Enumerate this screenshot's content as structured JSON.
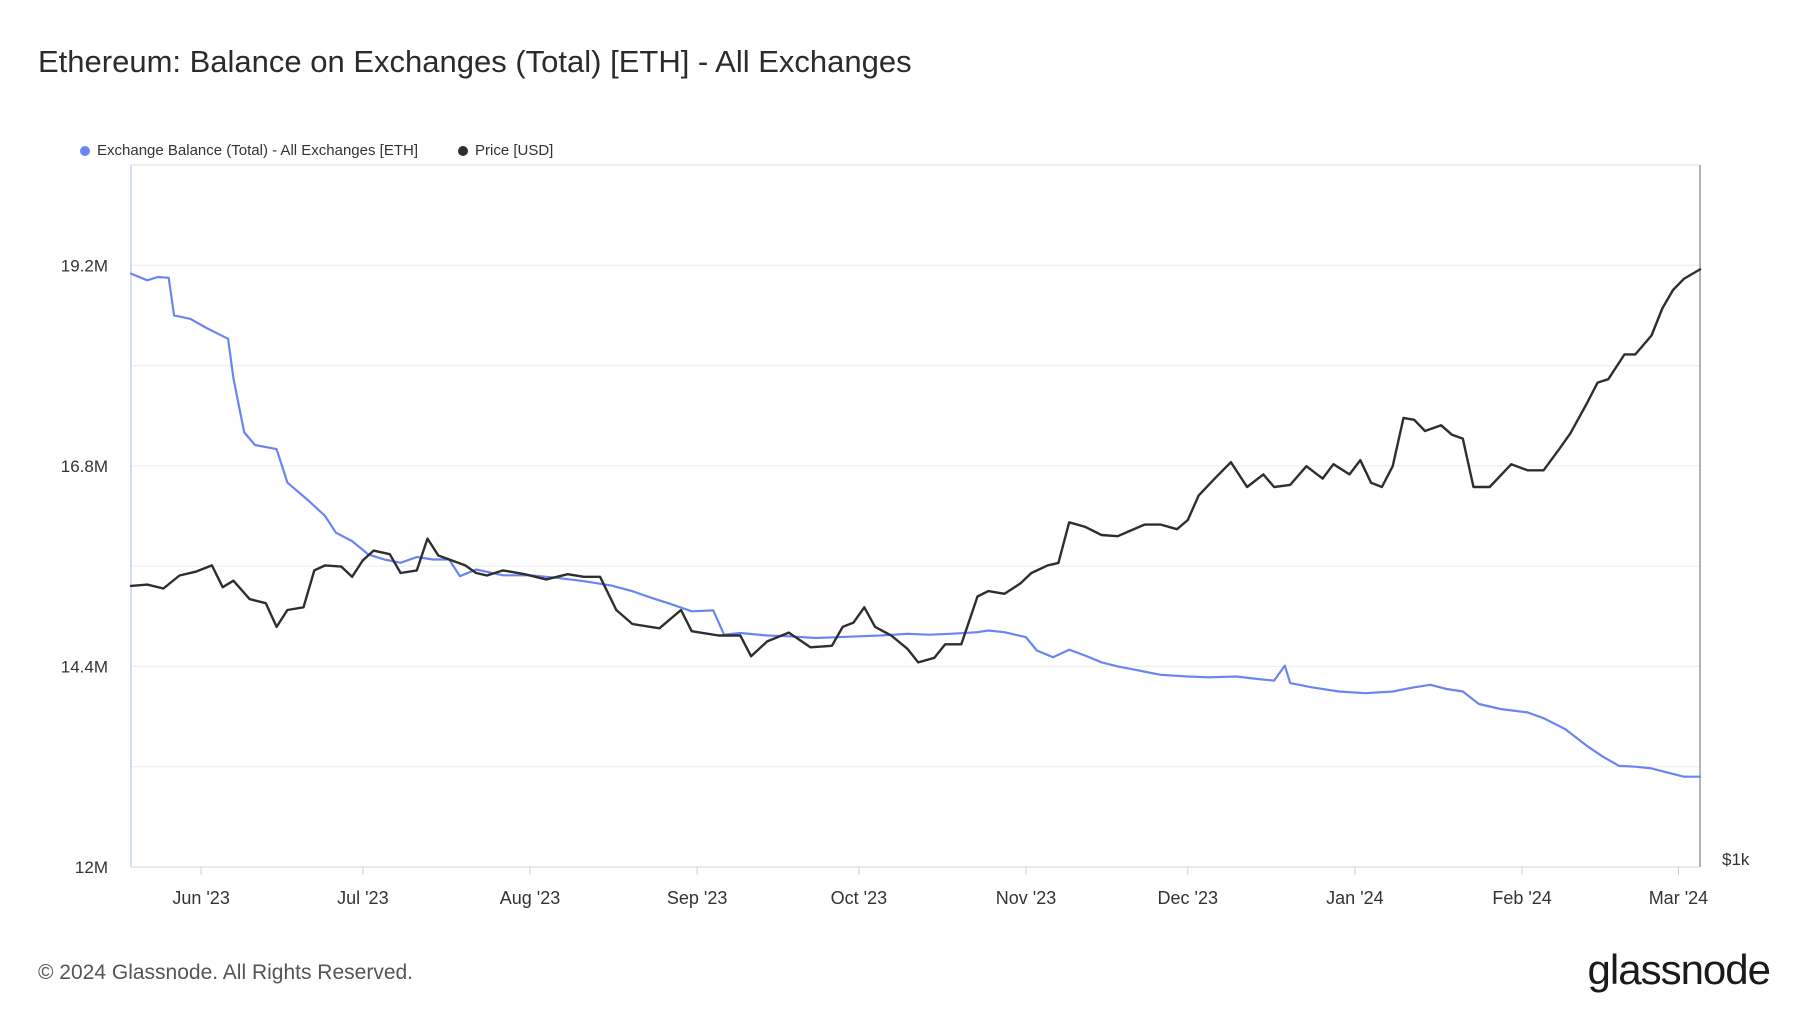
{
  "title": "Ethereum: Balance on Exchanges (Total) [ETH] - All Exchanges",
  "legend": [
    {
      "label": "Exchange Balance (Total) - All Exchanges [ETH]",
      "color": "#6a85f0"
    },
    {
      "label": "Price [USD]",
      "color": "#2e2e2e"
    }
  ],
  "footer": "© 2024 Glassnode. All Rights Reserved.",
  "logo": "glassnode",
  "chart_data": {
    "type": "line",
    "x_ticks": [
      "Jun '23",
      "Jul '23",
      "Aug '23",
      "Sep '23",
      "Oct '23",
      "Nov '23",
      "Dec '23",
      "Jan '24",
      "Feb '24",
      "Mar '24"
    ],
    "y_left_ticks": [
      "19.2M",
      "16.8M",
      "14.4M",
      "12M"
    ],
    "y_left_range": [
      12000000,
      20400000
    ],
    "y_right_ticks": [
      "$1k"
    ],
    "x_range": [
      "2023-05-19",
      "2024-03-05"
    ],
    "grid": true,
    "legend_position": "top-left",
    "series": [
      {
        "name": "Exchange Balance (Total) - All Exchanges [ETH]",
        "axis": "left",
        "color": "#6a85f0",
        "points": [
          [
            "2023-05-19",
            19100000
          ],
          [
            "2023-05-22",
            19020000
          ],
          [
            "2023-05-24",
            19060000
          ],
          [
            "2023-05-26",
            19050000
          ],
          [
            "2023-05-27",
            18600000
          ],
          [
            "2023-05-30",
            18560000
          ],
          [
            "2023-06-02",
            18450000
          ],
          [
            "2023-06-06",
            18320000
          ],
          [
            "2023-06-07",
            17850000
          ],
          [
            "2023-06-09",
            17200000
          ],
          [
            "2023-06-11",
            17050000
          ],
          [
            "2023-06-15",
            17000000
          ],
          [
            "2023-06-17",
            16600000
          ],
          [
            "2023-06-21",
            16380000
          ],
          [
            "2023-06-24",
            16200000
          ],
          [
            "2023-06-26",
            16000000
          ],
          [
            "2023-06-29",
            15900000
          ],
          [
            "2023-07-02",
            15740000
          ],
          [
            "2023-07-05",
            15680000
          ],
          [
            "2023-07-08",
            15640000
          ],
          [
            "2023-07-11",
            15710000
          ],
          [
            "2023-07-14",
            15680000
          ],
          [
            "2023-07-17",
            15680000
          ],
          [
            "2023-07-19",
            15480000
          ],
          [
            "2023-07-22",
            15560000
          ],
          [
            "2023-07-27",
            15490000
          ],
          [
            "2023-08-01",
            15490000
          ],
          [
            "2023-08-06",
            15460000
          ],
          [
            "2023-08-11",
            15420000
          ],
          [
            "2023-08-16",
            15370000
          ],
          [
            "2023-08-20",
            15300000
          ],
          [
            "2023-08-24",
            15210000
          ],
          [
            "2023-08-27",
            15150000
          ],
          [
            "2023-08-31",
            15060000
          ],
          [
            "2023-09-04",
            15070000
          ],
          [
            "2023-09-06",
            14780000
          ],
          [
            "2023-09-09",
            14800000
          ],
          [
            "2023-09-14",
            14770000
          ],
          [
            "2023-09-18",
            14760000
          ],
          [
            "2023-09-23",
            14740000
          ],
          [
            "2023-09-27",
            14750000
          ],
          [
            "2023-10-01",
            14760000
          ],
          [
            "2023-10-05",
            14770000
          ],
          [
            "2023-10-10",
            14790000
          ],
          [
            "2023-10-14",
            14780000
          ],
          [
            "2023-10-18",
            14790000
          ],
          [
            "2023-10-23",
            14810000
          ],
          [
            "2023-10-25",
            14830000
          ],
          [
            "2023-10-28",
            14810000
          ],
          [
            "2023-11-01",
            14750000
          ],
          [
            "2023-11-03",
            14590000
          ],
          [
            "2023-11-06",
            14510000
          ],
          [
            "2023-11-09",
            14600000
          ],
          [
            "2023-11-12",
            14530000
          ],
          [
            "2023-11-15",
            14450000
          ],
          [
            "2023-11-18",
            14400000
          ],
          [
            "2023-11-22",
            14350000
          ],
          [
            "2023-11-26",
            14300000
          ],
          [
            "2023-12-01",
            14280000
          ],
          [
            "2023-12-05",
            14270000
          ],
          [
            "2023-12-10",
            14280000
          ],
          [
            "2023-12-14",
            14250000
          ],
          [
            "2023-12-17",
            14230000
          ],
          [
            "2023-12-19",
            14410000
          ],
          [
            "2023-12-20",
            14200000
          ],
          [
            "2023-12-24",
            14150000
          ],
          [
            "2023-12-29",
            14100000
          ],
          [
            "2024-01-03",
            14080000
          ],
          [
            "2024-01-08",
            14100000
          ],
          [
            "2024-01-12",
            14150000
          ],
          [
            "2024-01-15",
            14180000
          ],
          [
            "2024-01-18",
            14130000
          ],
          [
            "2024-01-21",
            14100000
          ],
          [
            "2024-01-24",
            13950000
          ],
          [
            "2024-01-28",
            13890000
          ],
          [
            "2024-02-02",
            13850000
          ],
          [
            "2024-02-05",
            13780000
          ],
          [
            "2024-02-09",
            13650000
          ],
          [
            "2024-02-13",
            13450000
          ],
          [
            "2024-02-16",
            13320000
          ],
          [
            "2024-02-19",
            13210000
          ],
          [
            "2024-02-22",
            13200000
          ],
          [
            "2024-02-25",
            13180000
          ],
          [
            "2024-02-28",
            13130000
          ],
          [
            "2024-03-02",
            13080000
          ],
          [
            "2024-03-05",
            13080000
          ]
        ]
      },
      {
        "name": "Price [USD]",
        "axis": "right",
        "color": "#2e2e2e",
        "points": [
          [
            "2023-05-19",
            1810
          ],
          [
            "2023-05-22",
            1815
          ],
          [
            "2023-05-25",
            1800
          ],
          [
            "2023-05-28",
            1850
          ],
          [
            "2023-05-31",
            1865
          ],
          [
            "2023-06-03",
            1890
          ],
          [
            "2023-06-05",
            1805
          ],
          [
            "2023-06-07",
            1830
          ],
          [
            "2023-06-10",
            1760
          ],
          [
            "2023-06-13",
            1745
          ],
          [
            "2023-06-15",
            1660
          ],
          [
            "2023-06-17",
            1720
          ],
          [
            "2023-06-20",
            1730
          ],
          [
            "2023-06-22",
            1870
          ],
          [
            "2023-06-24",
            1890
          ],
          [
            "2023-06-27",
            1885
          ],
          [
            "2023-06-29",
            1845
          ],
          [
            "2023-07-01",
            1910
          ],
          [
            "2023-07-03",
            1950
          ],
          [
            "2023-07-06",
            1935
          ],
          [
            "2023-07-08",
            1860
          ],
          [
            "2023-07-11",
            1870
          ],
          [
            "2023-07-13",
            2000
          ],
          [
            "2023-07-15",
            1930
          ],
          [
            "2023-07-20",
            1890
          ],
          [
            "2023-07-22",
            1860
          ],
          [
            "2023-07-24",
            1850
          ],
          [
            "2023-07-27",
            1870
          ],
          [
            "2023-07-31",
            1855
          ],
          [
            "2023-08-04",
            1835
          ],
          [
            "2023-08-08",
            1855
          ],
          [
            "2023-08-11",
            1845
          ],
          [
            "2023-08-14",
            1845
          ],
          [
            "2023-08-17",
            1720
          ],
          [
            "2023-08-20",
            1670
          ],
          [
            "2023-08-25",
            1655
          ],
          [
            "2023-08-29",
            1720
          ],
          [
            "2023-08-31",
            1645
          ],
          [
            "2023-09-05",
            1630
          ],
          [
            "2023-09-09",
            1630
          ],
          [
            "2023-09-11",
            1560
          ],
          [
            "2023-09-14",
            1610
          ],
          [
            "2023-09-18",
            1640
          ],
          [
            "2023-09-22",
            1590
          ],
          [
            "2023-09-26",
            1595
          ],
          [
            "2023-09-28",
            1660
          ],
          [
            "2023-09-30",
            1675
          ],
          [
            "2023-10-02",
            1730
          ],
          [
            "2023-10-04",
            1660
          ],
          [
            "2023-10-07",
            1630
          ],
          [
            "2023-10-10",
            1585
          ],
          [
            "2023-10-12",
            1540
          ],
          [
            "2023-10-15",
            1555
          ],
          [
            "2023-10-17",
            1600
          ],
          [
            "2023-10-20",
            1600
          ],
          [
            "2023-10-23",
            1770
          ],
          [
            "2023-10-25",
            1790
          ],
          [
            "2023-10-28",
            1780
          ],
          [
            "2023-10-31",
            1820
          ],
          [
            "2023-11-02",
            1860
          ],
          [
            "2023-11-05",
            1890
          ],
          [
            "2023-11-07",
            1900
          ],
          [
            "2023-11-09",
            2070
          ],
          [
            "2023-11-12",
            2050
          ],
          [
            "2023-11-15",
            2015
          ],
          [
            "2023-11-18",
            2010
          ],
          [
            "2023-11-20",
            2030
          ],
          [
            "2023-11-23",
            2060
          ],
          [
            "2023-11-26",
            2060
          ],
          [
            "2023-11-29",
            2040
          ],
          [
            "2023-12-01",
            2080
          ],
          [
            "2023-12-03",
            2190
          ],
          [
            "2023-12-06",
            2270
          ],
          [
            "2023-12-09",
            2350
          ],
          [
            "2023-12-12",
            2230
          ],
          [
            "2023-12-15",
            2290
          ],
          [
            "2023-12-17",
            2230
          ],
          [
            "2023-12-20",
            2240
          ],
          [
            "2023-12-23",
            2330
          ],
          [
            "2023-12-26",
            2270
          ],
          [
            "2023-12-28",
            2340
          ],
          [
            "2023-12-31",
            2290
          ],
          [
            "2024-01-02",
            2360
          ],
          [
            "2024-01-04",
            2250
          ],
          [
            "2024-01-06",
            2230
          ],
          [
            "2024-01-08",
            2330
          ],
          [
            "2024-01-10",
            2580
          ],
          [
            "2024-01-12",
            2570
          ],
          [
            "2024-01-14",
            2510
          ],
          [
            "2024-01-17",
            2540
          ],
          [
            "2024-01-19",
            2490
          ],
          [
            "2024-01-21",
            2470
          ],
          [
            "2024-01-23",
            2230
          ],
          [
            "2024-01-26",
            2230
          ],
          [
            "2024-01-30",
            2340
          ],
          [
            "2024-02-02",
            2310
          ],
          [
            "2024-02-05",
            2310
          ],
          [
            "2024-02-08",
            2420
          ],
          [
            "2024-02-10",
            2500
          ],
          [
            "2024-02-13",
            2660
          ],
          [
            "2024-02-15",
            2780
          ],
          [
            "2024-02-17",
            2800
          ],
          [
            "2024-02-20",
            2950
          ],
          [
            "2024-02-22",
            2950
          ],
          [
            "2024-02-25",
            3070
          ],
          [
            "2024-02-27",
            3250
          ],
          [
            "2024-02-29",
            3380
          ],
          [
            "2024-03-02",
            3460
          ],
          [
            "2024-03-05",
            3530
          ]
        ]
      }
    ]
  }
}
